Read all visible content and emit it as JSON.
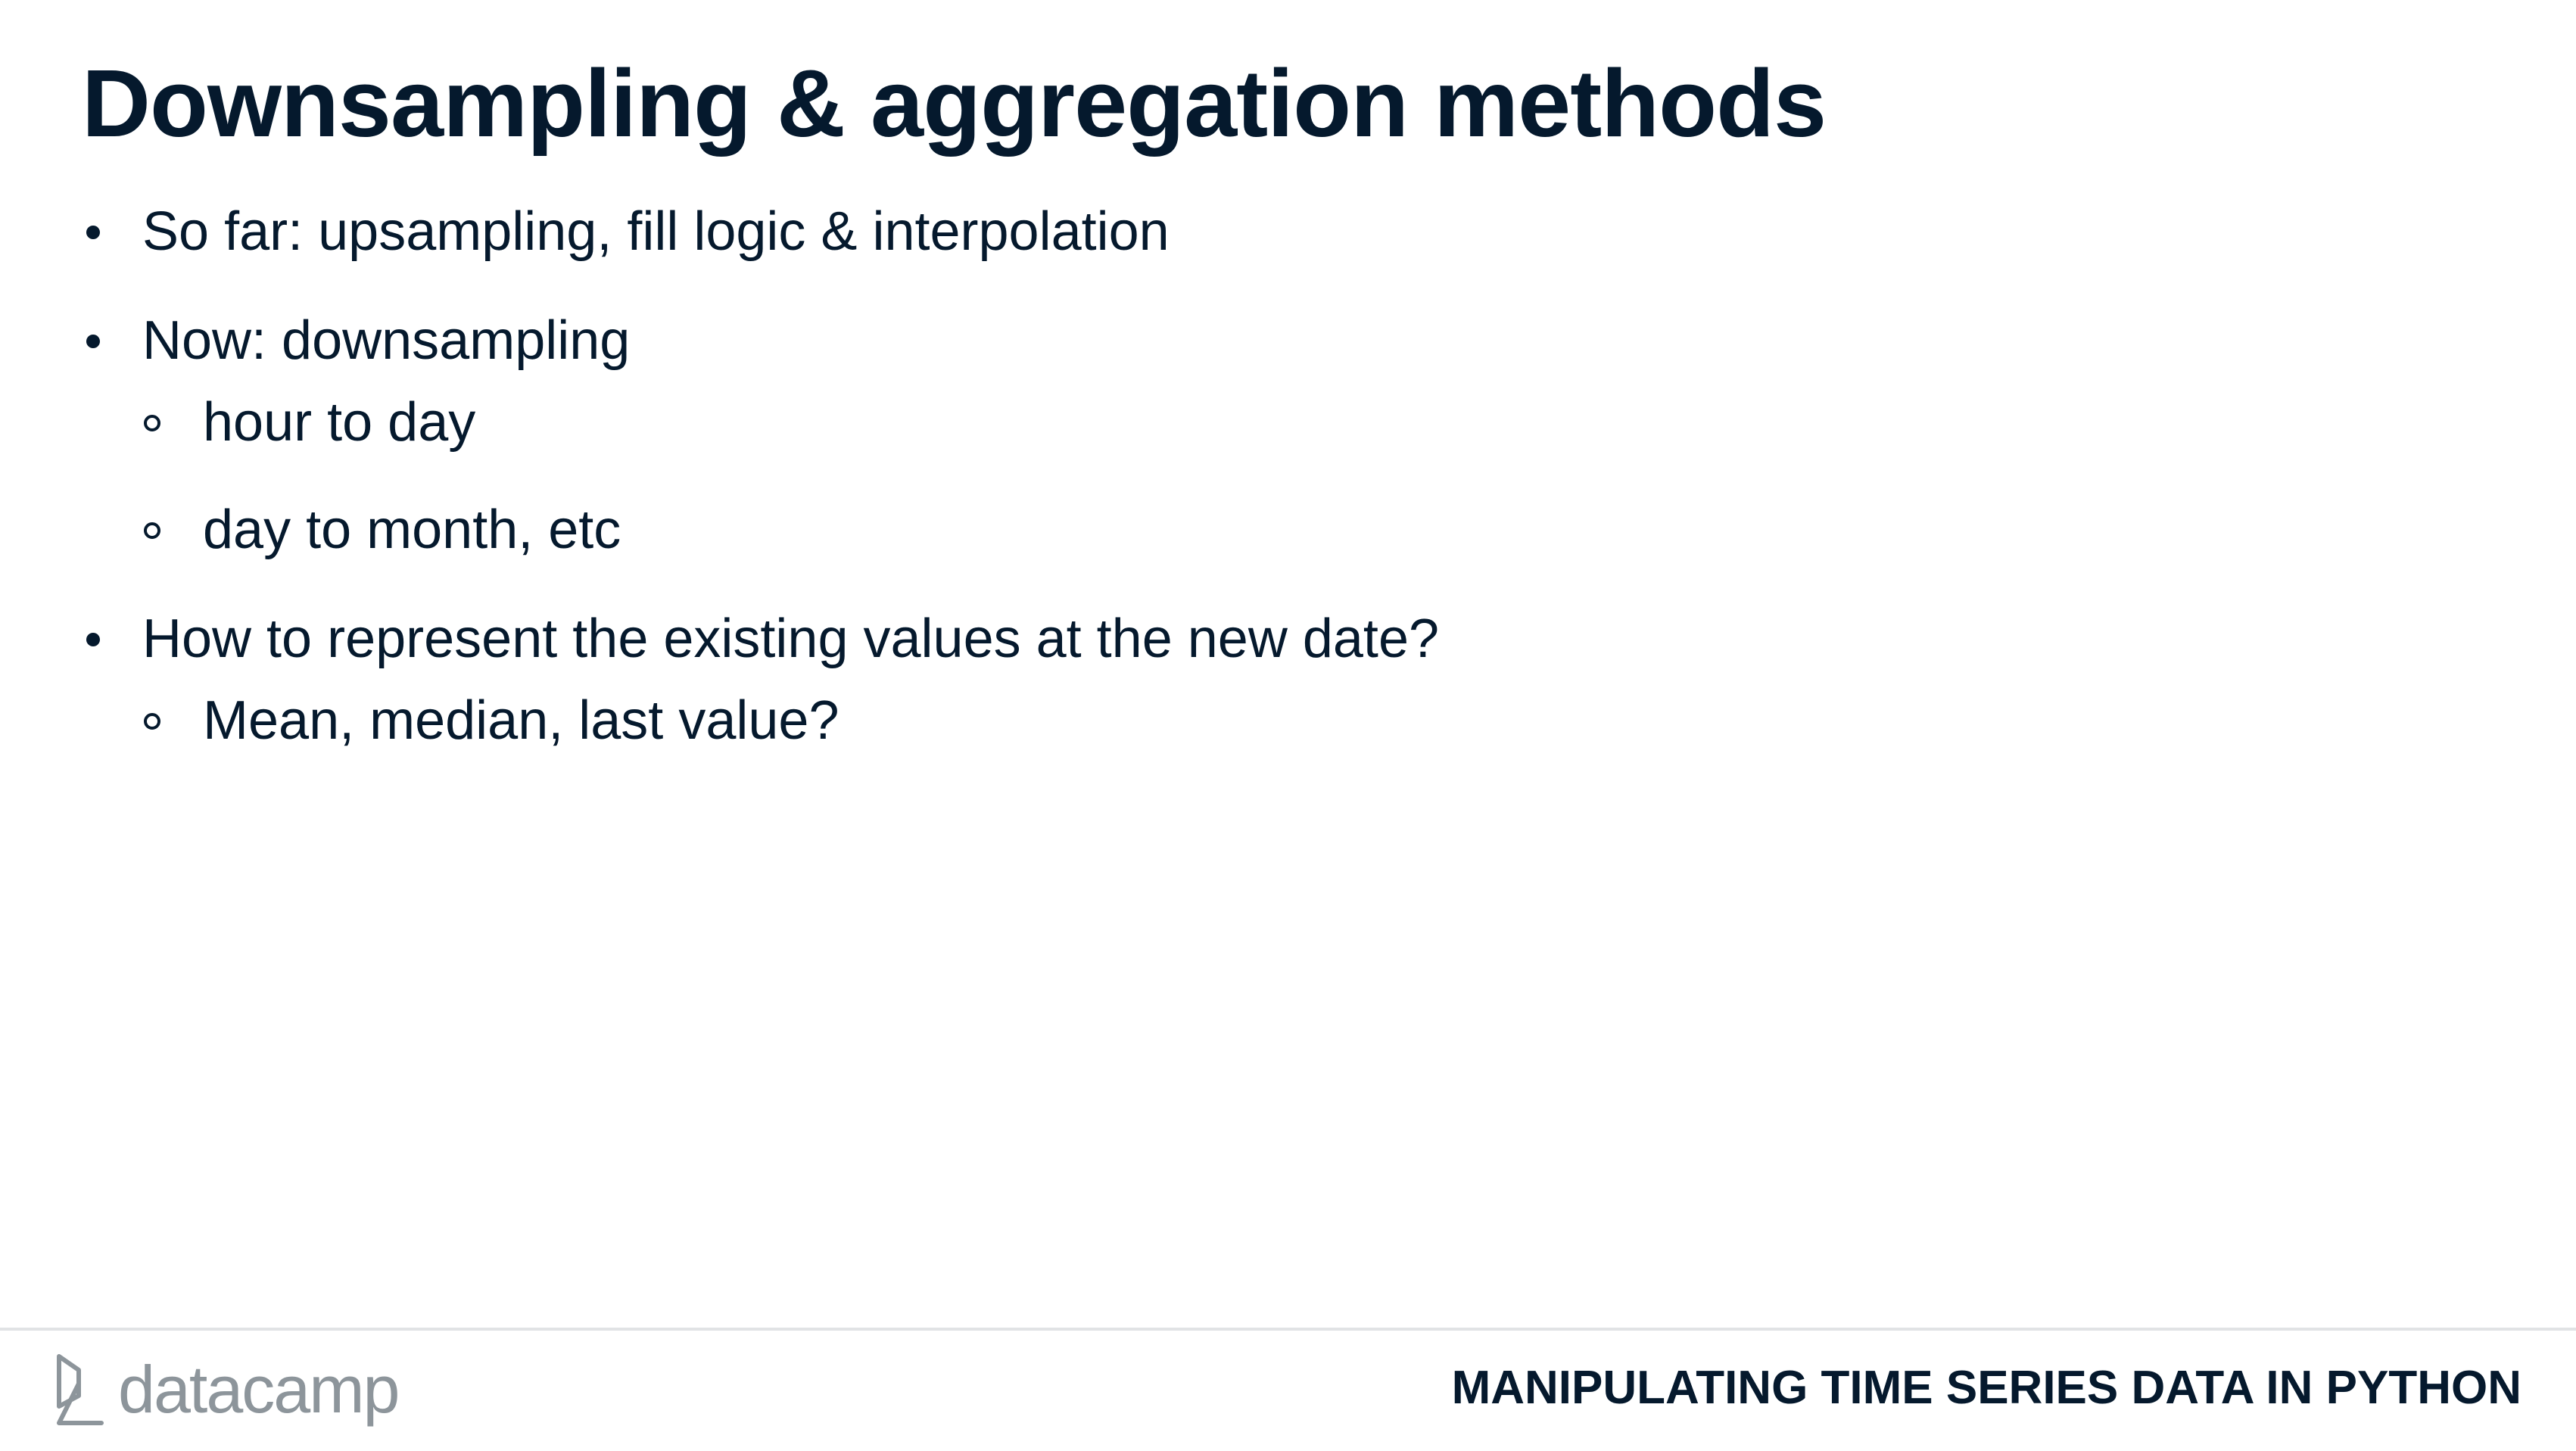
{
  "slide": {
    "title": "Downsampling & aggregation methods",
    "bullets": [
      {
        "text": "So far: upsampling, fill logic & interpolation",
        "sub": []
      },
      {
        "text": "Now: downsampling",
        "sub": [
          "hour to day",
          "day to month, etc"
        ]
      },
      {
        "text": "How to represent the existing values at the new date?",
        "sub": [
          "Mean, median, last value?"
        ]
      }
    ]
  },
  "footer": {
    "logo_text": "datacamp",
    "logo_icon": "datacamp-logo-icon",
    "course_title": "MANIPULATING TIME SERIES DATA IN PYTHON"
  },
  "colors": {
    "text": "#05192d",
    "logo": "#8d959b",
    "divider": "#e1e3e5"
  }
}
